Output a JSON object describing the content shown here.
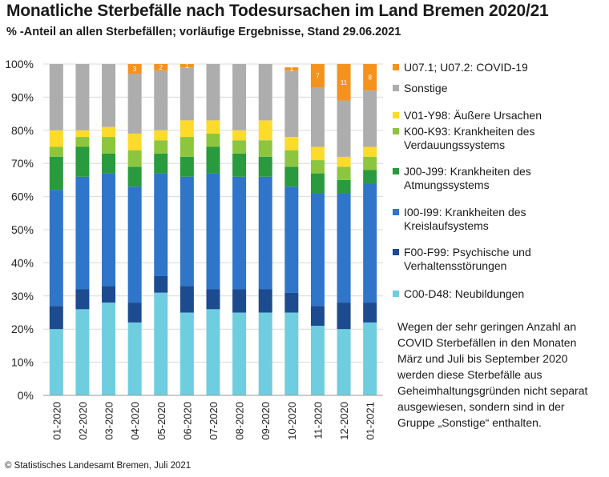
{
  "chart_data": {
    "type": "stacked_bar",
    "title": "Monatliche Sterbefälle nach Todesursachen im Land Bremen 2020/21",
    "subtitle": "% -Anteil an allen Sterbefällen; vorläufige Ergebnisse, Stand 29.06.2021",
    "ylim": [
      0,
      100
    ],
    "y_ticks": [
      "0%",
      "10%",
      "20%",
      "30%",
      "40%",
      "50%",
      "60%",
      "70%",
      "80%",
      "90%",
      "100%"
    ],
    "grid": true,
    "legend_position": "right",
    "categories": [
      "01-2020",
      "02-2020",
      "03-2020",
      "04-2020",
      "05-2020",
      "06-2020",
      "07-2020",
      "08-2020",
      "09-2020",
      "10-2020",
      "11-2020",
      "12-2020",
      "01-2021"
    ],
    "series": [
      {
        "name": "C00-D48: Neubildungen",
        "color": "#6fcde0",
        "values": [
          20,
          26,
          28,
          22,
          31,
          25,
          26,
          25,
          25,
          25,
          21,
          20,
          22
        ]
      },
      {
        "name": "F00-F99: Psychische und Verhaltensstörungen",
        "color": "#1d4b8f",
        "values": [
          7,
          6,
          5,
          6,
          5,
          8,
          6,
          7,
          7,
          6,
          6,
          8,
          6
        ]
      },
      {
        "name": "I00-I99: Krankheiten des Kreislaufsystems",
        "color": "#2f75c9",
        "values": [
          35,
          34,
          34,
          35,
          31,
          33,
          35,
          34,
          34,
          32,
          34,
          33,
          36
        ]
      },
      {
        "name": "J00-J99: Krankheiten des Atmungssystems",
        "color": "#2a9a3e",
        "values": [
          10,
          9,
          6,
          6,
          6,
          6,
          8,
          7,
          6,
          6,
          6,
          4,
          4
        ]
      },
      {
        "name": "K00-K93: Krankheiten des Verdauungssystems",
        "color": "#8cc63f",
        "values": [
          3,
          3,
          5,
          5,
          4,
          6,
          4,
          4,
          5,
          5,
          4,
          4,
          4
        ]
      },
      {
        "name": "V01-Y98: Äußere Ursachen",
        "color": "#fddb2a",
        "values": [
          5,
          2,
          3,
          5,
          3,
          5,
          4,
          3,
          6,
          4,
          4,
          3,
          3
        ]
      },
      {
        "name": "Sonstige",
        "color": "#adadad",
        "values": [
          20,
          20,
          19,
          18,
          18,
          16,
          17,
          20,
          17,
          20,
          18,
          17,
          17
        ]
      },
      {
        "name": "U07.1; U07.2: COVID-19",
        "color": "#f5921e",
        "values": [
          0,
          0,
          0,
          3,
          2,
          1,
          0,
          0,
          0,
          1,
          7,
          11,
          8
        ]
      }
    ],
    "bar_labels": [
      {
        "category": "04-2020",
        "text": "3"
      },
      {
        "category": "05-2020",
        "text": "2"
      },
      {
        "category": "06-2020",
        "text": "1"
      },
      {
        "category": "10-2020",
        "text": "1"
      },
      {
        "category": "11-2020",
        "text": "7"
      },
      {
        "category": "12-2020",
        "text": "11"
      },
      {
        "category": "01-2021",
        "text": "8"
      }
    ]
  },
  "legend": [
    {
      "label": "U07.1; U07.2: COVID-19",
      "color": "#f5921e"
    },
    {
      "label": "Sonstige",
      "color": "#adadad"
    },
    {
      "label": "V01-Y98: Äußere Ursachen",
      "color": "#fddb2a"
    },
    {
      "label": "K00-K93: Krankheiten des Verdauungssystems",
      "color": "#8cc63f"
    },
    {
      "label": "J00-J99: Krankheiten des Atmungssystems",
      "color": "#2a9a3e"
    },
    {
      "label": "I00-I99: Krankheiten des Kreislaufsystems",
      "color": "#2f75c9"
    },
    {
      "label": "F00-F99: Psychische und Verhaltensstörungen",
      "color": "#1d4b8f"
    },
    {
      "label": "C00-D48: Neubildungen",
      "color": "#6fcde0"
    }
  ],
  "note": "Wegen der sehr geringen Anzahl an COVID Sterbefällen in den Monaten März und Juli bis September 2020 werden diese Sterbefälle aus Geheimhaltungsgründen nicht separat ausgewiesen, sondern sind in der Gruppe „Sonstige“ enthalten.",
  "source": "© Statistisches Landesamt Bremen, Juli 2021"
}
